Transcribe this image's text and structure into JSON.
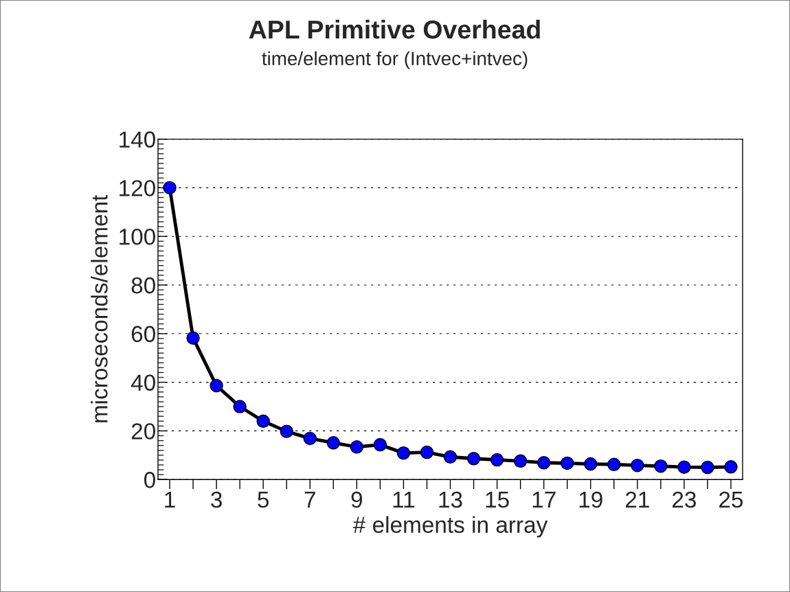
{
  "chart_data": {
    "type": "line",
    "title": "APL Primitive Overhead",
    "subtitle": "time/element for (Intvec+intvec)",
    "xlabel": "# elements in array",
    "ylabel": "microseconds/element",
    "x": [
      1,
      2,
      3,
      4,
      5,
      6,
      7,
      8,
      9,
      10,
      11,
      12,
      13,
      14,
      15,
      16,
      17,
      18,
      19,
      20,
      21,
      22,
      23,
      24,
      25
    ],
    "series": [
      {
        "color": "#0000ff",
        "values": [
          120,
          58.2,
          38.6,
          30.0,
          24.0,
          19.8,
          16.9,
          15.1,
          13.4,
          14.3,
          10.9,
          11.2,
          9.3,
          8.6,
          8.1,
          7.6,
          6.9,
          6.7,
          6.4,
          6.2,
          5.8,
          5.5,
          5.1,
          5.0,
          5.2
        ]
      }
    ],
    "xlim": [
      0.5,
      25.5
    ],
    "xticks": [
      1,
      {
        "value": 2,
        "label": null
      },
      3,
      {
        "value": 4,
        "label": null
      },
      5,
      {
        "value": 6,
        "label": null
      },
      7,
      {
        "value": 8,
        "label": null
      },
      9,
      {
        "value": 10,
        "label": null
      },
      11,
      {
        "value": 12,
        "label": null
      },
      13,
      {
        "value": 14,
        "label": null
      },
      15,
      {
        "value": 16,
        "label": null
      },
      17,
      {
        "value": 18,
        "label": null
      },
      19,
      {
        "value": 20,
        "label": null
      },
      21,
      {
        "value": 22,
        "label": null
      },
      23,
      {
        "value": 24,
        "label": null
      },
      25
    ],
    "ylim": [
      0,
      140
    ],
    "yticks": [
      0,
      20,
      40,
      60,
      80,
      100,
      120,
      140
    ],
    "grid": "y",
    "marker": "circle",
    "line_style": "solid",
    "legend": false
  }
}
